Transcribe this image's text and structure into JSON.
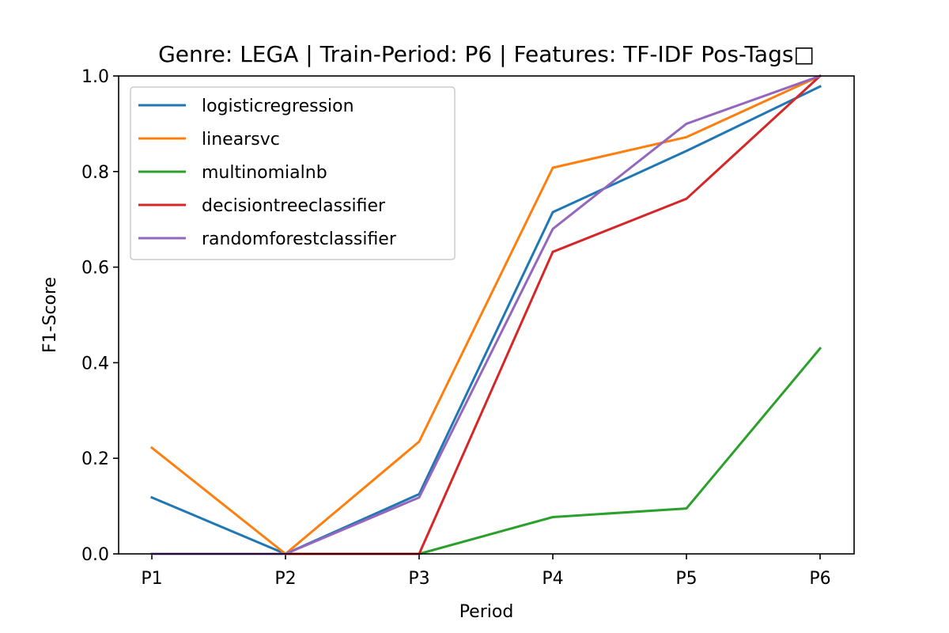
{
  "chart_data": {
    "type": "line",
    "title": "Genre: LEGA | Train-Period: P6 | Features: TF-IDF Pos-Tags□",
    "xlabel": "Period",
    "ylabel": "F1-Score",
    "categories": [
      "P1",
      "P2",
      "P3",
      "P4",
      "P5",
      "P6"
    ],
    "ylim": [
      0,
      1
    ],
    "yticks": [
      "0.0",
      "0.2",
      "0.4",
      "0.6",
      "0.8",
      "1.0"
    ],
    "grid": false,
    "legend_position": "upper-left",
    "series": [
      {
        "name": "logisticregression",
        "color": "#1f77b4",
        "values": [
          0.118,
          0.0,
          0.125,
          0.715,
          0.843,
          0.978
        ]
      },
      {
        "name": "linearsvc",
        "color": "#ff7f0e",
        "values": [
          0.222,
          0.0,
          0.235,
          0.808,
          0.872,
          1.0
        ]
      },
      {
        "name": "multinomialnb",
        "color": "#2ca02c",
        "values": [
          0.0,
          0.0,
          0.0,
          0.077,
          0.095,
          0.43
        ]
      },
      {
        "name": "decisiontreeclassifier",
        "color": "#d62728",
        "values": [
          0.0,
          0.0,
          0.0,
          0.632,
          0.743,
          1.0
        ]
      },
      {
        "name": "randomforestclassifier",
        "color": "#9467bd",
        "values": [
          0.0,
          0.0,
          0.118,
          0.68,
          0.9,
          1.0
        ]
      }
    ]
  }
}
